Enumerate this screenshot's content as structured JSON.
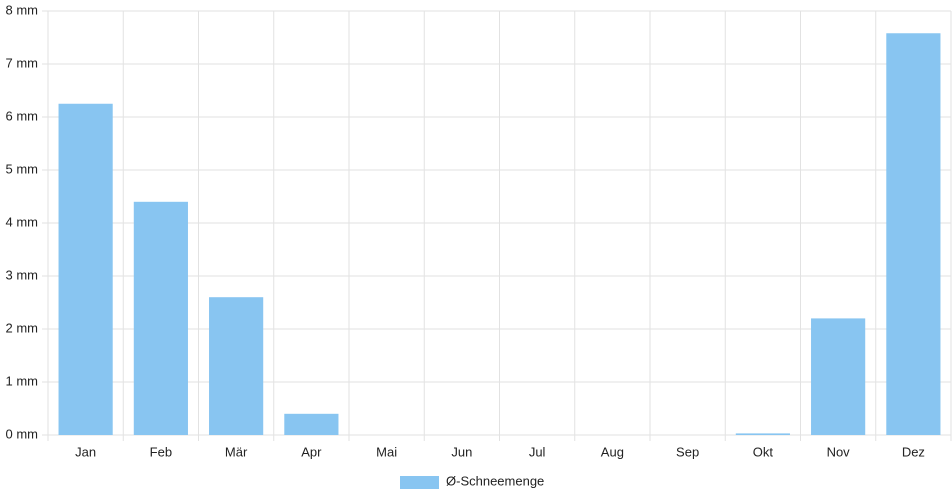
{
  "chart_data": {
    "type": "bar",
    "categories": [
      "Jan",
      "Feb",
      "Mär",
      "Apr",
      "Mai",
      "Jun",
      "Jul",
      "Aug",
      "Sep",
      "Okt",
      "Nov",
      "Dez"
    ],
    "series": [
      {
        "name": "Ø-Schneemenge",
        "color": "#88c5f1",
        "values": [
          6.25,
          4.4,
          2.6,
          0.4,
          0,
          0,
          0,
          0,
          0,
          0.03,
          2.2,
          7.58
        ]
      }
    ],
    "ylim": [
      0,
      8
    ],
    "yticks": [
      {
        "value": 0,
        "label": "0 mm"
      },
      {
        "value": 1,
        "label": "1 mm"
      },
      {
        "value": 2,
        "label": "2 mm"
      },
      {
        "value": 3,
        "label": "3 mm"
      },
      {
        "value": 4,
        "label": "4 mm"
      },
      {
        "value": 5,
        "label": "5 mm"
      },
      {
        "value": 6,
        "label": "6 mm"
      },
      {
        "value": 7,
        "label": "7 mm"
      },
      {
        "value": 8,
        "label": "8 mm"
      }
    ],
    "grid": true,
    "legend": "bottom"
  }
}
